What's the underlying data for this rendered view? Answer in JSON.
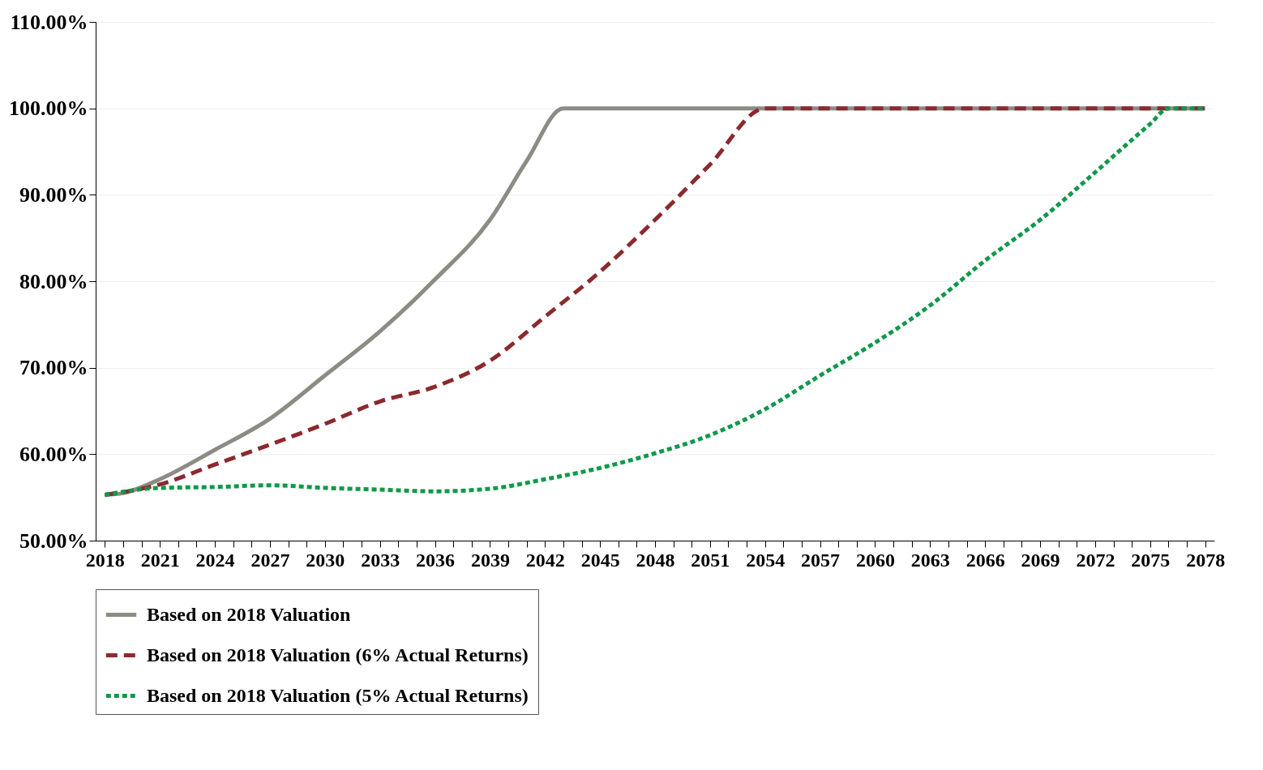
{
  "chart_data": {
    "type": "line",
    "xlim": [
      2017.5,
      2078.5
    ],
    "xticks": [
      {
        "value": 2018,
        "label": "2018"
      },
      {
        "value": 2019,
        "label": null
      },
      {
        "value": 2020,
        "label": null
      },
      {
        "value": 2021,
        "label": "2021"
      },
      {
        "value": 2022,
        "label": null
      },
      {
        "value": 2023,
        "label": null
      },
      {
        "value": 2024,
        "label": "2024"
      },
      {
        "value": 2025,
        "label": null
      },
      {
        "value": 2026,
        "label": null
      },
      {
        "value": 2027,
        "label": "2027"
      },
      {
        "value": 2028,
        "label": null
      },
      {
        "value": 2029,
        "label": null
      },
      {
        "value": 2030,
        "label": "2030"
      },
      {
        "value": 2031,
        "label": null
      },
      {
        "value": 2032,
        "label": null
      },
      {
        "value": 2033,
        "label": "2033"
      },
      {
        "value": 2034,
        "label": null
      },
      {
        "value": 2035,
        "label": null
      },
      {
        "value": 2036,
        "label": "2036"
      },
      {
        "value": 2037,
        "label": null
      },
      {
        "value": 2038,
        "label": null
      },
      {
        "value": 2039,
        "label": "2039"
      },
      {
        "value": 2040,
        "label": null
      },
      {
        "value": 2041,
        "label": null
      },
      {
        "value": 2042,
        "label": "2042"
      },
      {
        "value": 2043,
        "label": null
      },
      {
        "value": 2044,
        "label": null
      },
      {
        "value": 2045,
        "label": "2045"
      },
      {
        "value": 2046,
        "label": null
      },
      {
        "value": 2047,
        "label": null
      },
      {
        "value": 2048,
        "label": "2048"
      },
      {
        "value": 2049,
        "label": null
      },
      {
        "value": 2050,
        "label": null
      },
      {
        "value": 2051,
        "label": "2051"
      },
      {
        "value": 2052,
        "label": null
      },
      {
        "value": 2053,
        "label": null
      },
      {
        "value": 2054,
        "label": "2054"
      },
      {
        "value": 2055,
        "label": null
      },
      {
        "value": 2056,
        "label": null
      },
      {
        "value": 2057,
        "label": "2057"
      },
      {
        "value": 2058,
        "label": null
      },
      {
        "value": 2059,
        "label": null
      },
      {
        "value": 2060,
        "label": "2060"
      },
      {
        "value": 2061,
        "label": null
      },
      {
        "value": 2062,
        "label": null
      },
      {
        "value": 2063,
        "label": "2063"
      },
      {
        "value": 2064,
        "label": null
      },
      {
        "value": 2065,
        "label": null
      },
      {
        "value": 2066,
        "label": "2066"
      },
      {
        "value": 2067,
        "label": null
      },
      {
        "value": 2068,
        "label": null
      },
      {
        "value": 2069,
        "label": "2069"
      },
      {
        "value": 2070,
        "label": null
      },
      {
        "value": 2071,
        "label": null
      },
      {
        "value": 2072,
        "label": "2072"
      },
      {
        "value": 2073,
        "label": null
      },
      {
        "value": 2074,
        "label": null
      },
      {
        "value": 2075,
        "label": "2075"
      },
      {
        "value": 2076,
        "label": null
      },
      {
        "value": 2077,
        "label": null
      },
      {
        "value": 2078,
        "label": "2078"
      }
    ],
    "ylim": [
      50,
      110
    ],
    "yticks": [
      {
        "value": 50,
        "label": "50.00%"
      },
      {
        "value": 60,
        "label": "60.00%"
      },
      {
        "value": 70,
        "label": "70.00%"
      },
      {
        "value": 80,
        "label": "80.00%"
      },
      {
        "value": 90,
        "label": "90.00%"
      },
      {
        "value": 100,
        "label": "100.00%"
      },
      {
        "value": 110,
        "label": "110.00%"
      }
    ],
    "grid": "y",
    "legend": "bottom",
    "marker": "none",
    "series": [
      {
        "name": "Based on 2018 Valuation",
        "color": "#8c8c84",
        "line_style": "solid",
        "x": [
          2018,
          2019,
          2021,
          2024,
          2027,
          2030,
          2033,
          2036,
          2039,
          2041,
          2043,
          2078
        ],
        "values": [
          55.3,
          55.5,
          57.1,
          60.5,
          64.1,
          69.1,
          74.2,
          80.2,
          87.1,
          93.9,
          100,
          100
        ]
      },
      {
        "name": "Based on 2018 Valuation (6% Actual Returns)",
        "color": "#8b2a2e",
        "line_style": "dashed",
        "x": [
          2018,
          2021,
          2024,
          2027,
          2030,
          2033,
          2036,
          2039,
          2042,
          2045,
          2048,
          2051,
          2054,
          2078
        ],
        "values": [
          55.3,
          56.5,
          58.8,
          61.1,
          63.5,
          66.1,
          67.8,
          70.8,
          75.9,
          81.1,
          87.1,
          93.5,
          100,
          100
        ]
      },
      {
        "name": "Based on 2018 Valuation (5% Actual Returns)",
        "color": "#12984a",
        "line_style": "dotted",
        "x": [
          2018,
          2021,
          2024,
          2027,
          2030,
          2033,
          2036,
          2039,
          2042,
          2045,
          2048,
          2051,
          2054,
          2057,
          2060,
          2063,
          2066,
          2069,
          2072,
          2075,
          2076,
          2078
        ],
        "values": [
          55.3,
          56.1,
          56.2,
          56.4,
          56.1,
          55.9,
          55.7,
          56.0,
          57.1,
          58.4,
          60.1,
          62.2,
          65.2,
          69.1,
          72.9,
          77.2,
          82.4,
          87.1,
          92.6,
          98.2,
          100,
          100
        ]
      }
    ]
  }
}
